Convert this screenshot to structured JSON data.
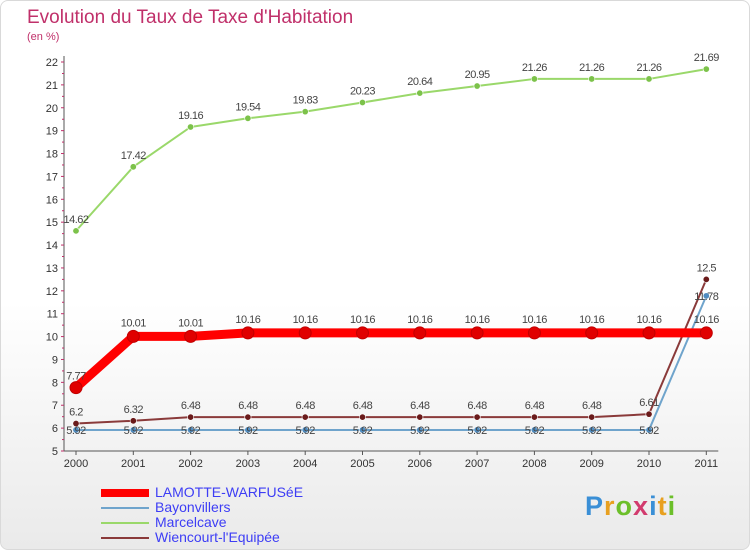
{
  "title": "Evolution du Taux de Taxe d'Habitation",
  "unit_label": "(en %)",
  "logo_text": "Proxiti",
  "logo_letters": [
    {
      "ch": "P",
      "color": "#3a8fd6"
    },
    {
      "ch": "r",
      "color": "#e8a020"
    },
    {
      "ch": "o",
      "color": "#6cbf2a"
    },
    {
      "ch": "x",
      "color": "#d23b6e"
    },
    {
      "ch": "i",
      "color": "#3a8fd6"
    },
    {
      "ch": "t",
      "color": "#e8a020"
    },
    {
      "ch": "i",
      "color": "#6cbf2a"
    }
  ],
  "colors": {
    "title": "#c0306a",
    "axis": "#555555",
    "grid_tick": "#c0306a",
    "legend_text": "#3d3df5"
  },
  "chart_data": {
    "type": "line",
    "title": "Evolution du Taux de Taxe d'Habitation",
    "ylabel": "(en %)",
    "xlabel": "",
    "categories": [
      "2000",
      "2001",
      "2002",
      "2003",
      "2004",
      "2005",
      "2006",
      "2007",
      "2008",
      "2009",
      "2010",
      "2011"
    ],
    "ylim": [
      5,
      22
    ],
    "yticks": [
      5,
      6,
      7,
      8,
      9,
      10,
      11,
      12,
      13,
      14,
      15,
      16,
      17,
      18,
      19,
      20,
      21,
      22
    ],
    "series": [
      {
        "name": "LAMOTTE-WARFUSéE",
        "color": "#ff0000",
        "marker_color": "#e00000",
        "width": 9,
        "values": [
          7.77,
          10.01,
          10.01,
          10.16,
          10.16,
          10.16,
          10.16,
          10.16,
          10.16,
          10.16,
          10.16,
          10.16
        ],
        "labels": [
          "7.77",
          "10.01",
          "10.01",
          "10.16",
          "10.16",
          "10.16",
          "10.16",
          "10.16",
          "10.16",
          "10.16",
          "10.16",
          "10.16"
        ]
      },
      {
        "name": "Bayonvillers",
        "color": "#6fa4cc",
        "marker_color": "#4f8cc0",
        "width": 2,
        "values": [
          5.92,
          5.92,
          5.92,
          5.92,
          5.92,
          5.92,
          5.92,
          5.92,
          5.92,
          5.92,
          5.92,
          11.78
        ],
        "labels": [
          "5.92",
          "5.92",
          "5.92",
          "5.92",
          "5.92",
          "5.92",
          "5.92",
          "5.92",
          "5.92",
          "5.92",
          "5.92",
          "11.78"
        ]
      },
      {
        "name": "Marcelcave",
        "color": "#9ad86a",
        "marker_color": "#7cc24a",
        "width": 2,
        "values": [
          14.62,
          17.42,
          19.16,
          19.54,
          19.83,
          20.23,
          20.64,
          20.95,
          21.26,
          21.26,
          21.26,
          21.69
        ],
        "labels": [
          "14.62",
          "17.42",
          "19.16",
          "19.54",
          "19.83",
          "20.23",
          "20.64",
          "20.95",
          "21.26",
          "21.26",
          "21.26",
          "21.69"
        ]
      },
      {
        "name": "Wiencourt-l'Equipée",
        "color": "#8a3a3a",
        "marker_color": "#6a1a1a",
        "width": 2,
        "values": [
          6.2,
          6.32,
          6.48,
          6.48,
          6.48,
          6.48,
          6.48,
          6.48,
          6.48,
          6.48,
          6.61,
          12.5
        ],
        "labels": [
          "6.2",
          "6.32",
          "6.48",
          "6.48",
          "6.48",
          "6.48",
          "6.48",
          "6.48",
          "6.48",
          "6.48",
          "6.61",
          "12.5"
        ]
      }
    ],
    "legend_position": "bottom-left"
  }
}
